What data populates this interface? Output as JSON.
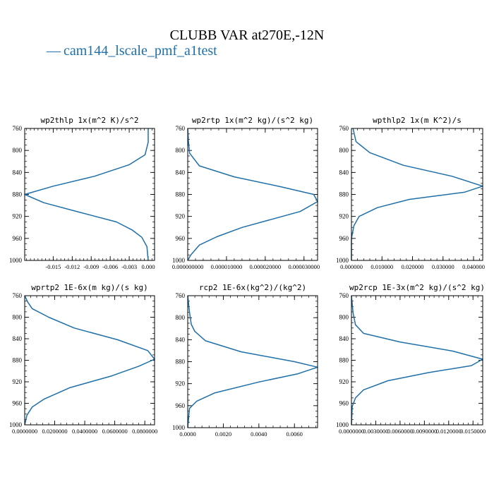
{
  "figure": {
    "title": "CLUBB VAR at270E,-12N",
    "legend": {
      "marker": "—",
      "label": "cam144_lscale_pmf_a1test",
      "color": "#1f6fa8"
    }
  },
  "chart_data": [
    {
      "type": "line",
      "title": "wp2thlp  1x(m^2 K)/s^2",
      "xlim": [
        -0.0195,
        0.001
      ],
      "ylim": [
        760,
        1000
      ],
      "y_inverted": true,
      "x_tick_labels": [
        "-0.015",
        "-0.012",
        "-0.009",
        "-0.006",
        "-0.003",
        "0.000"
      ],
      "x_tick_values": [
        -0.015,
        -0.012,
        -0.009,
        -0.006,
        -0.003,
        0.0
      ],
      "y_tick_labels": [
        "760",
        "800",
        "840",
        "880",
        "920",
        "960",
        "1000"
      ],
      "y_tick_values": [
        760,
        800,
        840,
        880,
        920,
        960,
        1000
      ],
      "series": [
        {
          "color": "#1f6fa8",
          "x": [
            0.0,
            0.0,
            -0.0005,
            -0.003,
            -0.0085,
            -0.015,
            -0.0195,
            -0.0165,
            -0.011,
            -0.005,
            -0.0025,
            -0.001,
            -0.0002,
            0.0
          ],
          "y": [
            760,
            785,
            808,
            826,
            847,
            865,
            880,
            895,
            912,
            930,
            945,
            958,
            975,
            1000
          ]
        }
      ]
    },
    {
      "type": "line",
      "title": "wp2rtp  1x(m^2 kg)/(s^2 kg)",
      "xlim": [
        0.0,
        3.35e-05
      ],
      "ylim": [
        760,
        1000
      ],
      "y_inverted": true,
      "x_tick_labels": [
        "0.000000000",
        "0.000010000",
        "0.000020000",
        "0.000030000"
      ],
      "x_tick_values": [
        0.0,
        1e-05,
        2e-05,
        3e-05
      ],
      "y_tick_labels": [
        "760",
        "800",
        "840",
        "880",
        "920",
        "960",
        "1000"
      ],
      "y_tick_values": [
        760,
        800,
        840,
        880,
        920,
        960,
        1000
      ],
      "series": [
        {
          "color": "#1f6fa8",
          "x": [
            0.0,
            2e-07,
            5e-07,
            3e-06,
            1.2e-05,
            2.4e-05,
            3.25e-05,
            3.35e-05,
            2.9e-05,
            1.4e-05,
            7.5e-06,
            3e-06,
            8e-07,
            0.0
          ],
          "y": [
            760,
            785,
            805,
            828,
            848,
            866,
            880,
            893,
            911,
            940,
            957,
            972,
            990,
            1000
          ]
        }
      ]
    },
    {
      "type": "line",
      "title": "wpthlp2  1x(m K^2)/s",
      "xlim": [
        0.0,
        0.043
      ],
      "ylim": [
        760,
        1000
      ],
      "y_inverted": true,
      "x_tick_labels": [
        "0.000000",
        "0.010000",
        "0.020000",
        "0.030000",
        "0.040000"
      ],
      "x_tick_values": [
        0.0,
        0.01,
        0.02,
        0.03,
        0.04
      ],
      "y_tick_labels": [
        "760",
        "800",
        "840",
        "880",
        "920",
        "960",
        "1000"
      ],
      "y_tick_values": [
        760,
        800,
        840,
        880,
        920,
        960,
        1000
      ],
      "series": [
        {
          "color": "#1f6fa8",
          "x": [
            0.0005,
            0.0015,
            0.006,
            0.017,
            0.033,
            0.043,
            0.037,
            0.019,
            0.0085,
            0.0025,
            0.0008,
            0.0,
            0.0,
            0.0
          ],
          "y": [
            760,
            784,
            804,
            827,
            847,
            865,
            876,
            889,
            904,
            920,
            937,
            960,
            985,
            1000
          ]
        }
      ]
    },
    {
      "type": "line",
      "title": "wprtp2  1E-6x(m kg)/(s kg)",
      "xlim": [
        0.0,
        0.0865
      ],
      "ylim": [
        760,
        1000
      ],
      "y_inverted": true,
      "x_tick_labels": [
        "0.0000000",
        "0.0200000",
        "0.0400000",
        "0.0600000",
        "0.0800000"
      ],
      "x_tick_values": [
        0.0,
        0.02,
        0.04,
        0.06,
        0.08
      ],
      "y_tick_labels": [
        "760",
        "800",
        "840",
        "880",
        "920",
        "960",
        "1000"
      ],
      "y_tick_values": [
        760,
        800,
        840,
        880,
        920,
        960,
        1000
      ],
      "series": [
        {
          "color": "#1f6fa8",
          "x": [
            0.0,
            0.002,
            0.005,
            0.016,
            0.033,
            0.062,
            0.082,
            0.0865,
            0.076,
            0.058,
            0.03,
            0.013,
            0.005,
            0.0015,
            0.0
          ],
          "y": [
            760,
            772,
            784,
            800,
            820,
            842,
            862,
            878,
            891,
            909,
            931,
            952,
            967,
            982,
            1000
          ]
        }
      ]
    },
    {
      "type": "line",
      "title": "rcp2  1E-6x(kg^2)/(kg^2)",
      "xlim": [
        0.0,
        0.0073
      ],
      "ylim": [
        760,
        1000
      ],
      "y_inverted": true,
      "x_tick_labels": [
        "0.0000",
        "0.0020",
        "0.0040",
        "0.0060"
      ],
      "x_tick_values": [
        0.0,
        0.002,
        0.004,
        0.006
      ],
      "y_tick_labels": [
        "760",
        "800",
        "840",
        "880",
        "920",
        "960",
        "1000"
      ],
      "y_tick_values": [
        760,
        800,
        840,
        880,
        920,
        960,
        1000
      ],
      "series": [
        {
          "color": "#1f6fa8",
          "x": [
            0.0,
            0.0001,
            0.0002,
            0.0004,
            0.001,
            0.003,
            0.006,
            0.0073,
            0.0062,
            0.004,
            0.0015,
            0.0005,
            0.0001,
            0.0
          ],
          "y": [
            760,
            790,
            812,
            825,
            842,
            862,
            880,
            890,
            902,
            917,
            937,
            952,
            965,
            1000
          ]
        }
      ]
    },
    {
      "type": "line",
      "title": "wp2rcp  1E-3x(m^2 kg)/(s^2 kg)",
      "xlim": [
        0.0,
        0.0162
      ],
      "ylim": [
        760,
        1000
      ],
      "y_inverted": true,
      "x_tick_labels": [
        "0.0000000",
        "0.0030000",
        "0.0060000",
        "0.0090000",
        "0.0120000",
        "0.0150000"
      ],
      "x_tick_values": [
        0.0,
        0.003,
        0.006,
        0.009,
        0.012,
        0.015
      ],
      "y_tick_labels": [
        "760",
        "800",
        "840",
        "880",
        "920",
        "960",
        "1000"
      ],
      "y_tick_values": [
        760,
        800,
        840,
        880,
        920,
        960,
        1000
      ],
      "series": [
        {
          "color": "#1f6fa8",
          "x": [
            0.0,
            0.0002,
            0.0005,
            0.0015,
            0.006,
            0.0125,
            0.0162,
            0.0148,
            0.0095,
            0.0045,
            0.0015,
            0.0005,
            0.0001,
            0.0
          ],
          "y": [
            760,
            792,
            814,
            830,
            846,
            863,
            878,
            890,
            903,
            918,
            935,
            950,
            966,
            1000
          ]
        }
      ]
    }
  ]
}
